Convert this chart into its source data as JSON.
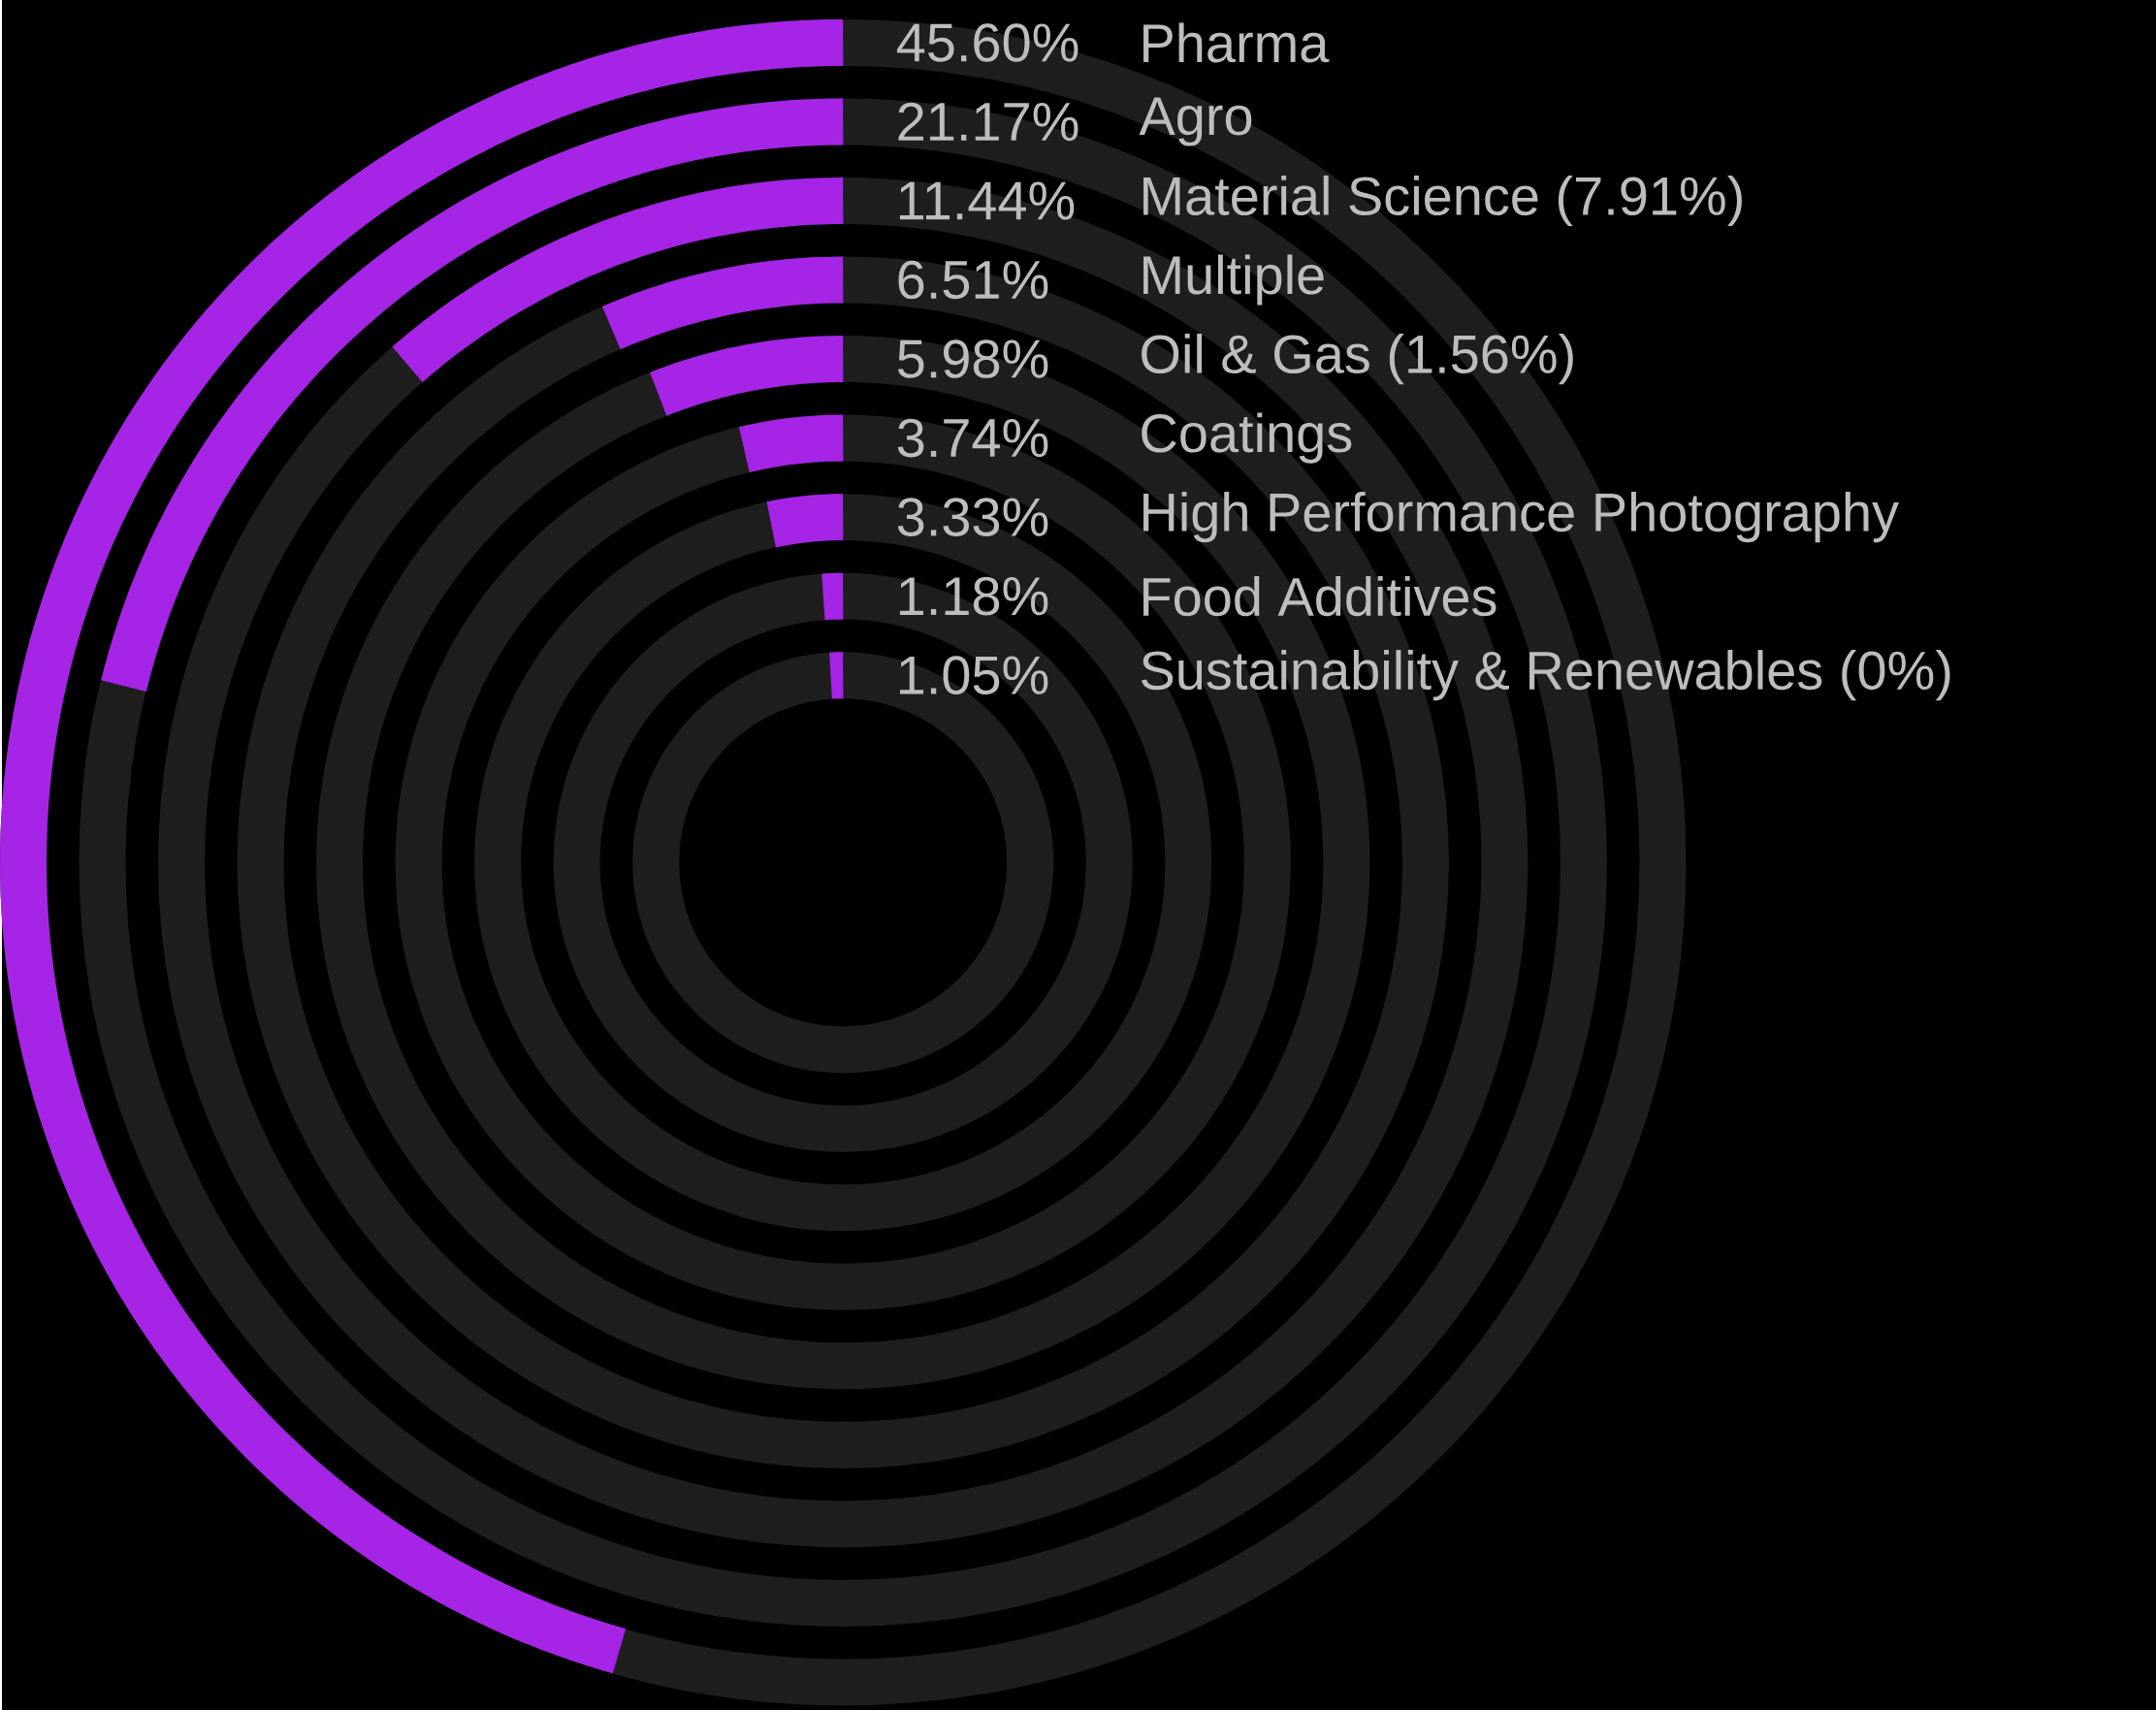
{
  "chart_data": {
    "type": "other",
    "categories": [
      "Pharma",
      "Agro",
      "Material Science (7.91%)",
      "Multiple",
      "Oil & Gas (1.56%)",
      "Coatings",
      "High Performance Photography",
      "Food Additives",
      "Sustainability & Renewables (0%)"
    ],
    "values": [
      45.6,
      21.17,
      11.44,
      6.51,
      5.98,
      3.74,
      3.33,
      1.18,
      1.05
    ],
    "value_labels": [
      "45.60%",
      "21.17%",
      "11.44%",
      "6.51%",
      "5.98%",
      "3.74%",
      "3.33%",
      "1.18%",
      "1.05%"
    ],
    "color": "#a524e6"
  }
}
